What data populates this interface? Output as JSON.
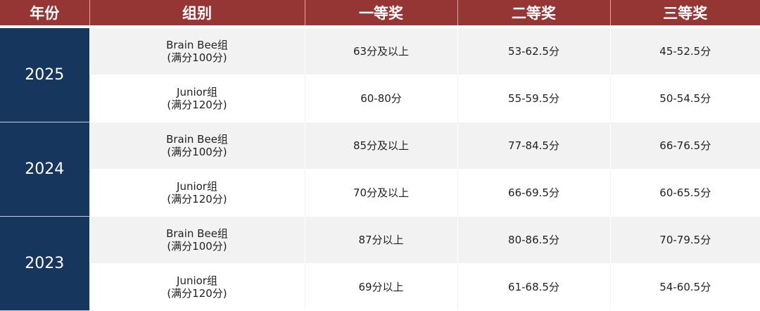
{
  "header": [
    "年份",
    "组别",
    "一等奖",
    "二等奖",
    "三等奖"
  ],
  "years": [
    {
      "year": "2025",
      "rows": [
        {
          "group": "Brain Bee组",
          "full": "(满分100分)",
          "first": "63分及以上",
          "second": "53-62.5分",
          "third": "45-52.5分"
        },
        {
          "group": "Junior组",
          "full": "(满分120分)",
          "first": "60-80分",
          "second": "55-59.5分",
          "third": "50-54.5分"
        }
      ]
    },
    {
      "year": "2024",
      "rows": [
        {
          "group": "Brain Bee组",
          "full": "(满分100分)",
          "first": "85分及以上",
          "second": "77-84.5分",
          "third": "66-76.5分"
        },
        {
          "group": "Junior组",
          "full": "(满分120分)",
          "first": "70分及以上",
          "second": "66-69.5分",
          "third": "60-65.5分"
        }
      ]
    },
    {
      "year": "2023",
      "rows": [
        {
          "group": "Brain Bee组",
          "full": "(满分100分)",
          "first": "87分以上",
          "second": "80-86.5分",
          "third": "70-79.5分"
        },
        {
          "group": "Junior组",
          "full": "(满分120分)",
          "first": "69分以上",
          "second": "61-68.5分",
          "third": "54-60.5分"
        }
      ]
    }
  ],
  "colors": {
    "header_bg": "#963634",
    "year_bg": "#17365d",
    "stripe": "#f2f2f2"
  }
}
